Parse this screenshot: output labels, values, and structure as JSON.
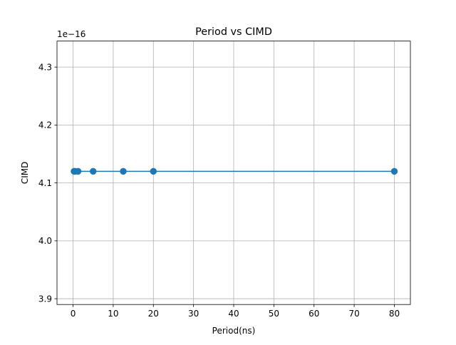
{
  "chart_data": {
    "type": "line",
    "title": "Period vs CIMD",
    "xlabel": "Period(ns)",
    "ylabel": "CIMD",
    "offset_label": "1e−16",
    "grid": true,
    "xlim": [
      -4,
      84
    ],
    "ylim": [
      3.89,
      4.345
    ],
    "x_ticks": [
      0,
      10,
      20,
      30,
      40,
      50,
      60,
      70,
      80
    ],
    "x_tick_labels": [
      "0",
      "10",
      "20",
      "30",
      "40",
      "50",
      "60",
      "70",
      "80"
    ],
    "y_ticks": [
      3.9,
      4.0,
      4.1,
      4.2,
      4.3
    ],
    "y_tick_labels": [
      "3.9",
      "4.0",
      "4.1",
      "4.2",
      "4.3"
    ],
    "series": [
      {
        "x": [
          0.25,
          0.5,
          1.25,
          5,
          12.5,
          20,
          80
        ],
        "y": [
          4.12,
          4.12,
          4.12,
          4.12,
          4.12,
          4.12,
          4.12
        ],
        "color": "#1f77b4",
        "marker": "circle"
      }
    ]
  }
}
